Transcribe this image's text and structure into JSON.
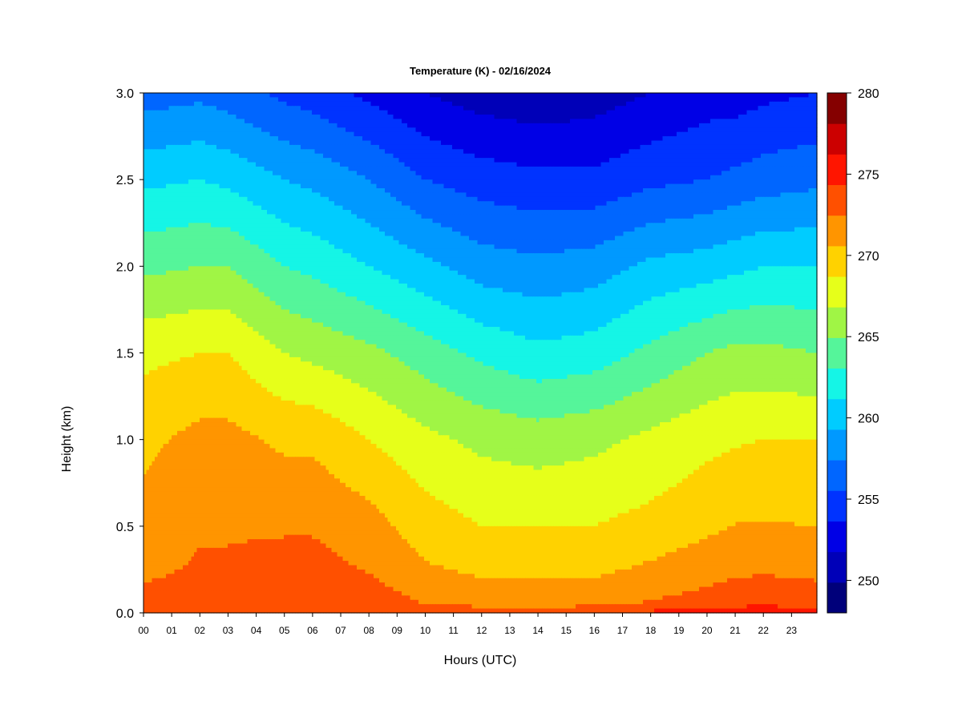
{
  "chart_data": {
    "type": "heatmap",
    "title": "Temperature (K) - 02/16/2024",
    "xlabel": "Hours (UTC)",
    "ylabel": "Height (km)",
    "x_ticks": [
      "00",
      "01",
      "02",
      "03",
      "04",
      "05",
      "06",
      "07",
      "08",
      "09",
      "10",
      "11",
      "12",
      "13",
      "14",
      "15",
      "16",
      "17",
      "18",
      "19",
      "20",
      "21",
      "22",
      "23"
    ],
    "xlim": [
      0,
      23.9
    ],
    "y_ticks": [
      "0.0",
      "0.5",
      "1.0",
      "1.5",
      "2.0",
      "2.5",
      "3.0"
    ],
    "ylim": [
      0,
      3
    ],
    "colorbar": {
      "range": [
        248,
        280
      ],
      "step": 2,
      "ticks": [
        "250",
        "255",
        "260",
        "265",
        "270",
        "275",
        "280"
      ],
      "colors": [
        "#00007a",
        "#0000b8",
        "#0000e6",
        "#0033ff",
        "#0066ff",
        "#0099ff",
        "#00ccff",
        "#15f5e6",
        "#55f59a",
        "#a0f545",
        "#e6ff1a",
        "#ffd200",
        "#ff9500",
        "#ff5000",
        "#ff1500",
        "#cc0000",
        "#850000"
      ]
    },
    "profile_heights_km": [
      0.0,
      0.05,
      0.3,
      0.6,
      1.0,
      1.5,
      2.0,
      2.5,
      3.0
    ],
    "profiles": [
      {
        "hour": 0,
        "temps": [
          275.5,
          275.0,
          273.0,
          272.5,
          271.5,
          269.5,
          265.5,
          261.5,
          257.0
        ]
      },
      {
        "hour": 2,
        "temps": [
          275.5,
          275.0,
          274.2,
          273.5,
          272.6,
          270.0,
          266.0,
          262.0,
          257.5
        ]
      },
      {
        "hour": 3,
        "temps": [
          275.5,
          275.0,
          274.2,
          273.5,
          272.6,
          270.0,
          266.0,
          261.5,
          257.0
        ]
      },
      {
        "hour": 5,
        "temps": [
          275.5,
          275.3,
          274.6,
          273.3,
          271.6,
          268.0,
          264.0,
          260.0,
          255.5
        ]
      },
      {
        "hour": 6,
        "temps": [
          275.5,
          275.3,
          274.6,
          273.3,
          271.6,
          267.5,
          263.5,
          259.5,
          255.0
        ]
      },
      {
        "hour": 8,
        "temps": [
          275.3,
          275.0,
          273.6,
          272.3,
          270.0,
          266.5,
          262.0,
          258.0,
          253.5
        ]
      },
      {
        "hour": 10,
        "temps": [
          275.0,
          274.0,
          272.0,
          270.5,
          268.5,
          265.0,
          260.5,
          256.0,
          252.0
        ]
      },
      {
        "hour": 12,
        "temps": [
          275.0,
          273.6,
          271.0,
          269.5,
          267.5,
          263.5,
          259.0,
          255.0,
          251.0
        ]
      },
      {
        "hour": 14,
        "temps": [
          275.0,
          273.6,
          271.0,
          269.4,
          267.0,
          262.5,
          258.5,
          254.5,
          250.5
        ]
      },
      {
        "hour": 16,
        "temps": [
          275.3,
          273.6,
          271.0,
          269.5,
          267.5,
          263.0,
          259.0,
          254.5,
          251.0
        ]
      },
      {
        "hour": 18,
        "temps": [
          276.5,
          274.2,
          272.0,
          270.2,
          268.5,
          264.5,
          260.5,
          255.5,
          252.0
        ]
      },
      {
        "hour": 20,
        "temps": [
          277.5,
          274.8,
          272.8,
          271.0,
          269.5,
          266.0,
          261.0,
          256.0,
          253.0
        ]
      },
      {
        "hour": 21,
        "temps": [
          278.0,
          275.2,
          273.2,
          271.5,
          269.8,
          266.5,
          261.5,
          256.5,
          253.0
        ]
      },
      {
        "hour": 22,
        "temps": [
          278.0,
          275.5,
          273.3,
          271.6,
          270.0,
          266.5,
          262.0,
          257.0,
          253.5
        ]
      },
      {
        "hour": 23.9,
        "temps": [
          277.0,
          275.2,
          273.0,
          271.5,
          270.0,
          266.0,
          262.0,
          257.5,
          254.0
        ]
      }
    ]
  }
}
